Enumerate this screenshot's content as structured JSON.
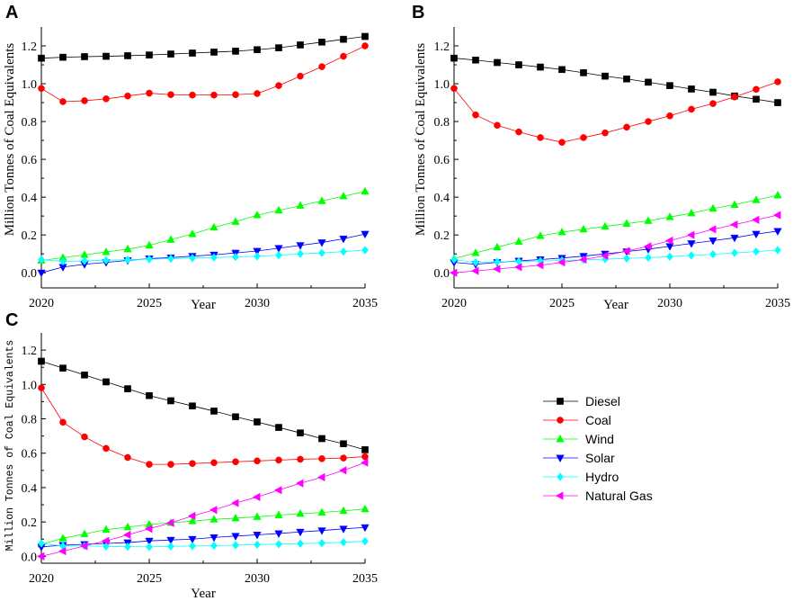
{
  "legend": {
    "title": "",
    "entries": [
      {
        "key": "diesel",
        "label": "Diesel"
      },
      {
        "key": "coal",
        "label": "Coal"
      },
      {
        "key": "wind",
        "label": "Wind"
      },
      {
        "key": "solar",
        "label": "Solar"
      },
      {
        "key": "hydro",
        "label": "Hydro"
      },
      {
        "key": "gas",
        "label": "Natural Gas"
      }
    ]
  },
  "series_style": {
    "diesel": {
      "color": "#000000",
      "marker": "square"
    },
    "coal": {
      "color": "#ff0000",
      "marker": "circle"
    },
    "wind": {
      "color": "#00ff00",
      "marker": "triangle-up"
    },
    "solar": {
      "color": "#0000ff",
      "marker": "triangle-down"
    },
    "hydro": {
      "color": "#00ffff",
      "marker": "diamond"
    },
    "gas": {
      "color": "#ff00ff",
      "marker": "triangle-left"
    }
  },
  "chart_data": [
    {
      "panel": "A",
      "type": "line",
      "title": "",
      "xlabel": "Year",
      "ylabel": "Million Tonnes of Coal Equivalents",
      "xlim": [
        2020,
        2035
      ],
      "ylim": [
        -0.08,
        1.3
      ],
      "xticks": [
        2020,
        2025,
        2030,
        2035
      ],
      "yticks": [
        0.0,
        0.2,
        0.4,
        0.6,
        0.8,
        1.0,
        1.2
      ],
      "x": [
        2020,
        2021,
        2022,
        2023,
        2024,
        2025,
        2026,
        2027,
        2028,
        2029,
        2030,
        2031,
        2032,
        2033,
        2034,
        2035
      ],
      "series": [
        {
          "key": "diesel",
          "name": "Diesel",
          "values": [
            1.135,
            1.14,
            1.143,
            1.145,
            1.148,
            1.152,
            1.157,
            1.162,
            1.167,
            1.172,
            1.18,
            1.19,
            1.205,
            1.22,
            1.235,
            1.25
          ]
        },
        {
          "key": "coal",
          "name": "Coal",
          "values": [
            0.975,
            0.905,
            0.91,
            0.92,
            0.935,
            0.95,
            0.942,
            0.94,
            0.94,
            0.942,
            0.948,
            0.99,
            1.04,
            1.09,
            1.145,
            1.2
          ]
        },
        {
          "key": "wind",
          "name": "Wind",
          "values": [
            0.065,
            0.08,
            0.095,
            0.11,
            0.125,
            0.145,
            0.175,
            0.205,
            0.24,
            0.27,
            0.305,
            0.33,
            0.355,
            0.38,
            0.405,
            0.43
          ]
        },
        {
          "key": "solar",
          "name": "Solar",
          "values": [
            0.0,
            0.03,
            0.045,
            0.055,
            0.065,
            0.075,
            0.08,
            0.088,
            0.095,
            0.105,
            0.115,
            0.13,
            0.145,
            0.16,
            0.18,
            0.205
          ]
        },
        {
          "key": "hydro",
          "name": "Hydro",
          "values": [
            0.07,
            0.06,
            0.063,
            0.066,
            0.069,
            0.072,
            0.075,
            0.078,
            0.081,
            0.084,
            0.087,
            0.093,
            0.1,
            0.105,
            0.112,
            0.12
          ]
        }
      ]
    },
    {
      "panel": "B",
      "type": "line",
      "title": "",
      "xlabel": "Year",
      "ylabel": "Million Tonnes of Coal Equivalents",
      "xlim": [
        2020,
        2035
      ],
      "ylim": [
        -0.08,
        1.3
      ],
      "xticks": [
        2020,
        2025,
        2030,
        2035
      ],
      "yticks": [
        0.0,
        0.2,
        0.4,
        0.6,
        0.8,
        1.0,
        1.2
      ],
      "x": [
        2020,
        2021,
        2022,
        2023,
        2024,
        2025,
        2026,
        2027,
        2028,
        2029,
        2030,
        2031,
        2032,
        2033,
        2034,
        2035
      ],
      "series": [
        {
          "key": "diesel",
          "name": "Diesel",
          "values": [
            1.135,
            1.125,
            1.112,
            1.1,
            1.088,
            1.075,
            1.058,
            1.04,
            1.025,
            1.008,
            0.99,
            0.972,
            0.955,
            0.935,
            0.918,
            0.9
          ]
        },
        {
          "key": "coal",
          "name": "Coal",
          "values": [
            0.975,
            0.835,
            0.78,
            0.745,
            0.715,
            0.69,
            0.715,
            0.74,
            0.77,
            0.8,
            0.83,
            0.865,
            0.895,
            0.93,
            0.97,
            1.01
          ]
        },
        {
          "key": "wind",
          "name": "Wind",
          "values": [
            0.075,
            0.105,
            0.135,
            0.165,
            0.195,
            0.215,
            0.23,
            0.245,
            0.26,
            0.275,
            0.295,
            0.315,
            0.34,
            0.36,
            0.385,
            0.41
          ]
        },
        {
          "key": "solar",
          "name": "Solar",
          "values": [
            0.055,
            0.045,
            0.055,
            0.063,
            0.07,
            0.078,
            0.088,
            0.1,
            0.112,
            0.125,
            0.14,
            0.155,
            0.17,
            0.185,
            0.205,
            0.22
          ]
        },
        {
          "key": "hydro",
          "name": "Hydro",
          "values": [
            0.07,
            0.055,
            0.058,
            0.06,
            0.062,
            0.065,
            0.068,
            0.072,
            0.076,
            0.08,
            0.085,
            0.092,
            0.098,
            0.105,
            0.112,
            0.12
          ]
        },
        {
          "key": "gas",
          "name": "Natural Gas",
          "values": [
            0.0,
            0.01,
            0.02,
            0.03,
            0.04,
            0.055,
            0.07,
            0.09,
            0.115,
            0.14,
            0.17,
            0.2,
            0.23,
            0.255,
            0.28,
            0.305
          ]
        }
      ]
    },
    {
      "panel": "C",
      "type": "line",
      "title": "",
      "xlabel": "Year",
      "ylabel": "Million Tonnes of Coal Equivalents",
      "xlim": [
        2020,
        2035
      ],
      "ylim": [
        -0.04,
        1.3
      ],
      "xticks": [
        2020,
        2025,
        2030,
        2035
      ],
      "yticks": [
        0.0,
        0.2,
        0.4,
        0.6,
        0.8,
        1.0,
        1.2
      ],
      "x": [
        2020,
        2021,
        2022,
        2023,
        2024,
        2025,
        2026,
        2027,
        2028,
        2029,
        2030,
        2031,
        2032,
        2033,
        2034,
        2035
      ],
      "series": [
        {
          "key": "diesel",
          "name": "Diesel",
          "values": [
            1.135,
            1.095,
            1.055,
            1.015,
            0.975,
            0.935,
            0.905,
            0.875,
            0.845,
            0.812,
            0.782,
            0.75,
            0.718,
            0.685,
            0.655,
            0.62
          ]
        },
        {
          "key": "coal",
          "name": "Coal",
          "values": [
            0.98,
            0.78,
            0.695,
            0.628,
            0.575,
            0.535,
            0.535,
            0.54,
            0.545,
            0.55,
            0.555,
            0.56,
            0.565,
            0.568,
            0.572,
            0.58
          ]
        },
        {
          "key": "wind",
          "name": "Wind",
          "values": [
            0.07,
            0.105,
            0.13,
            0.155,
            0.17,
            0.185,
            0.195,
            0.205,
            0.215,
            0.222,
            0.23,
            0.24,
            0.248,
            0.255,
            0.265,
            0.275
          ]
        },
        {
          "key": "solar",
          "name": "Solar",
          "values": [
            0.055,
            0.065,
            0.07,
            0.075,
            0.08,
            0.09,
            0.095,
            0.1,
            0.11,
            0.118,
            0.125,
            0.133,
            0.142,
            0.15,
            0.16,
            0.168
          ]
        },
        {
          "key": "hydro",
          "name": "Hydro",
          "values": [
            0.075,
            0.06,
            0.06,
            0.058,
            0.056,
            0.055,
            0.058,
            0.06,
            0.062,
            0.065,
            0.068,
            0.071,
            0.074,
            0.077,
            0.082,
            0.088
          ]
        },
        {
          "key": "gas",
          "name": "Natural Gas",
          "values": [
            0.0,
            0.03,
            0.06,
            0.09,
            0.125,
            0.16,
            0.195,
            0.235,
            0.27,
            0.31,
            0.345,
            0.385,
            0.425,
            0.46,
            0.5,
            0.545
          ]
        }
      ]
    }
  ]
}
